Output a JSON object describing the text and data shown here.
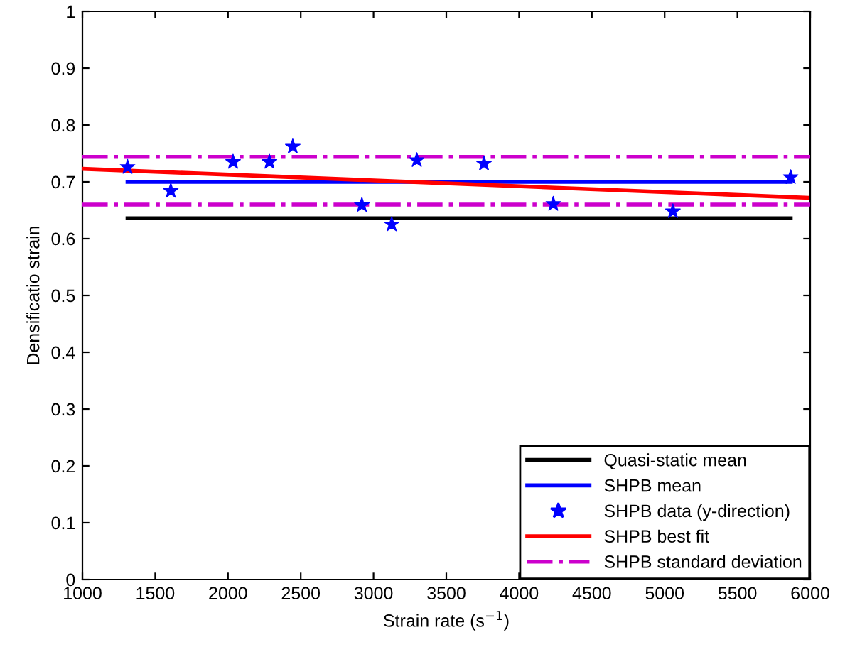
{
  "chart_data": {
    "type": "line",
    "xlabel": "Strain rate (s$^{−1}$)",
    "ylabel": "Densificatio strain",
    "xlim": [
      1000,
      6000
    ],
    "ylim": [
      0,
      1
    ],
    "xticks": [
      1000,
      1500,
      2000,
      2500,
      3000,
      3500,
      4000,
      4500,
      5000,
      5500,
      6000
    ],
    "yticks": [
      0,
      0.1,
      0.2,
      0.3,
      0.4,
      0.5,
      0.6,
      0.7,
      0.8,
      0.9,
      1
    ],
    "grid": false,
    "legend": "bottom right",
    "series": [
      {
        "name": "Quasi-static mean",
        "color": "#000000",
        "x": [
          1310,
          5866
        ],
        "values": [
          0.636,
          0.636
        ]
      },
      {
        "name": "SHPB mean",
        "color": "#0000ff",
        "x": [
          1310,
          5866
        ],
        "values": [
          0.7,
          0.7
        ]
      },
      {
        "name": "SHPB data (y-direction)",
        "type": "scatter",
        "marker": "star",
        "color": "#0000ff",
        "x": [
          1310,
          1607,
          2035,
          2285,
          2445,
          2920,
          3125,
          3297,
          3759,
          4235,
          5057,
          5866
        ],
        "values": [
          0.726,
          0.684,
          0.735,
          0.735,
          0.762,
          0.659,
          0.625,
          0.738,
          0.732,
          0.661,
          0.648,
          0.708
        ]
      },
      {
        "name": "SHPB best fit",
        "color": "#ff0000",
        "x": [
          1000,
          5980
        ],
        "values": [
          0.723,
          0.672
        ]
      },
      {
        "name": "SHPB standard deviation",
        "line_style": "dashdot",
        "color": "#cc00cc",
        "x": [
          1000,
          6000
        ],
        "values": [
          0.744,
          0.744
        ]
      },
      {
        "line_style": "dashdot",
        "color": "#cc00cc",
        "x": [
          1000,
          6000
        ],
        "values": [
          0.66,
          0.66
        ]
      }
    ]
  }
}
